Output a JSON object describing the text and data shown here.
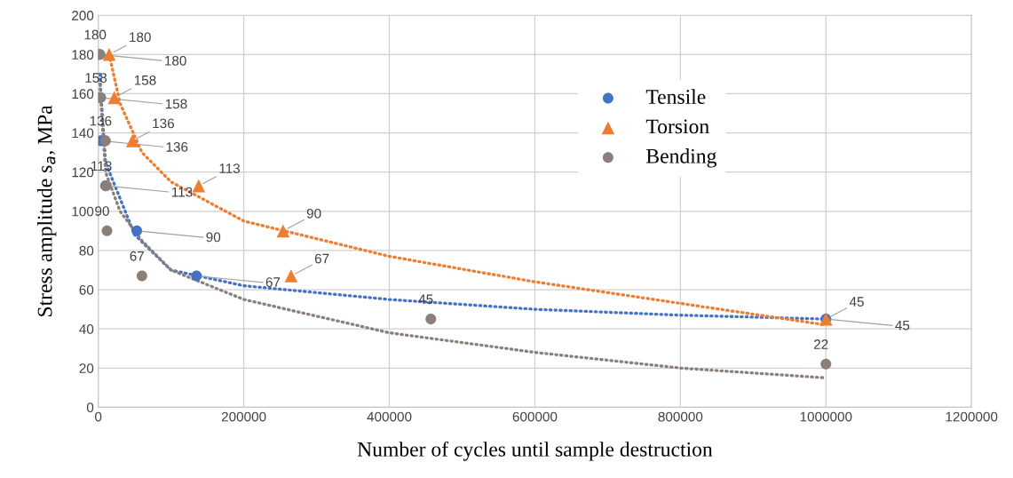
{
  "chart_data": {
    "type": "scatter",
    "xlabel": "Number of cycles until sample destruction",
    "ylabel": "Stress amplitude s$_{a}$, MPa",
    "xlim": [
      0,
      1200000
    ],
    "xticks": [
      0,
      200000,
      400000,
      600000,
      800000,
      1000000,
      1200000
    ],
    "ylim": [
      0,
      200
    ],
    "yticks": [
      0,
      20,
      40,
      60,
      80,
      100,
      120,
      140,
      160,
      180,
      200
    ],
    "grid": true,
    "legend": "top right",
    "series": [
      {
        "name": "Tensile",
        "marker": "circle",
        "color": "#4472c4",
        "x": [
          1000,
          2000,
          3000,
          10000,
          53000,
          135000,
          1000000
        ],
        "values": [
          180,
          158,
          136,
          113,
          90,
          67,
          45
        ],
        "value_labels": [
          "180",
          "158",
          "136",
          "113",
          "90",
          "67",
          "45"
        ]
      },
      {
        "name": "Torsion",
        "marker": "triangle",
        "color": "#ed7d31",
        "x": [
          15000,
          22000,
          47000,
          138000,
          254000,
          265000,
          1000000
        ],
        "values": [
          180,
          158,
          136,
          113,
          90,
          67,
          45
        ],
        "value_labels": [
          "180",
          "158",
          "136",
          "113",
          "90",
          "67",
          "45"
        ]
      },
      {
        "name": "Bending",
        "marker": "circle",
        "color": "#8c7f7a",
        "x": [
          2500,
          3500,
          10000,
          11000,
          12000,
          60000,
          457000,
          1000000
        ],
        "values": [
          180,
          158,
          136,
          113,
          90,
          67,
          45,
          22
        ],
        "value_labels": [
          "180",
          "158",
          "136",
          "113",
          "90",
          "67",
          "45",
          "22"
        ]
      },
      {
        "type": "line",
        "line_style": "dotted",
        "color": "#4472c4",
        "x": [
          2000,
          10000,
          50000,
          100000,
          200000,
          400000,
          600000,
          800000,
          1000000
        ],
        "values": [
          170,
          125,
          88,
          70,
          62,
          55,
          50,
          47,
          45
        ]
      },
      {
        "type": "line",
        "line_style": "dotted",
        "color": "#ed7d31",
        "x": [
          15000,
          30000,
          60000,
          100000,
          200000,
          400000,
          600000,
          800000,
          1000000
        ],
        "values": [
          180,
          155,
          130,
          115,
          95,
          77,
          64,
          53,
          42
        ]
      },
      {
        "type": "line",
        "line_style": "dotted",
        "color": "#8c7f7a",
        "x": [
          2000,
          10000,
          30000,
          60000,
          100000,
          200000,
          400000,
          600000,
          800000,
          1000000
        ],
        "values": [
          165,
          120,
          100,
          85,
          70,
          55,
          38,
          28,
          20,
          15
        ]
      }
    ]
  }
}
